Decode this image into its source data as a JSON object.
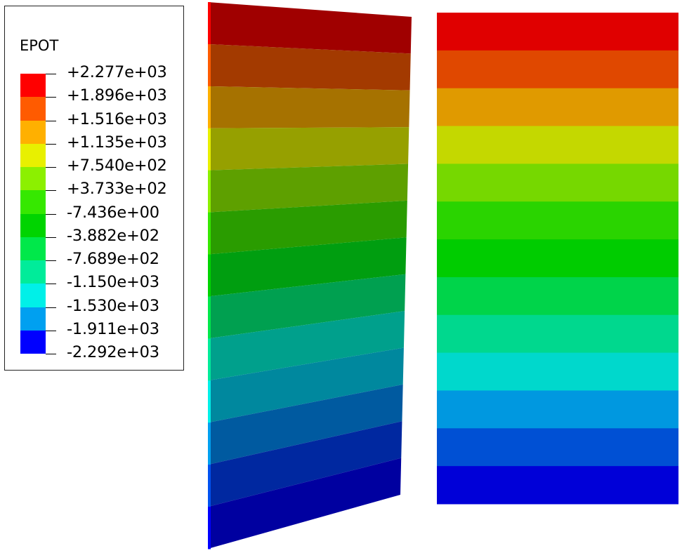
{
  "legend": {
    "title": "EPOT",
    "labels": [
      "+2.277e+03",
      "+1.896e+03",
      "+1.516e+03",
      "+1.135e+03",
      "+7.540e+02",
      "+3.733e+02",
      "-7.436e+00",
      "-3.882e+02",
      "-7.689e+02",
      "-1.150e+03",
      "-1.530e+03",
      "-1.911e+03",
      "-2.292e+03"
    ],
    "colors": [
      "#ff0000",
      "#ff5b00",
      "#ffb000",
      "#e8f000",
      "#8cf000",
      "#36e800",
      "#00d400",
      "#00e84a",
      "#00ec9a",
      "#00f0e8",
      "#00a0f0",
      "#0052f0",
      "#0000ff"
    ]
  },
  "models": {
    "left_colors": [
      "#a00000",
      "#a33a00",
      "#a67200",
      "#96a000",
      "#5ea000",
      "#2a9c00",
      "#009e10",
      "#00a050",
      "#00a08c",
      "#00889e",
      "#005aa0",
      "#0028a0",
      "#0000a0"
    ],
    "right_colors": [
      "#e00000",
      "#e04800",
      "#e09a00",
      "#c4d800",
      "#76d800",
      "#2ad400",
      "#00cc00",
      "#00d44a",
      "#00d88e",
      "#00d8cc",
      "#0098e0",
      "#0050d4",
      "#0000d8"
    ]
  }
}
